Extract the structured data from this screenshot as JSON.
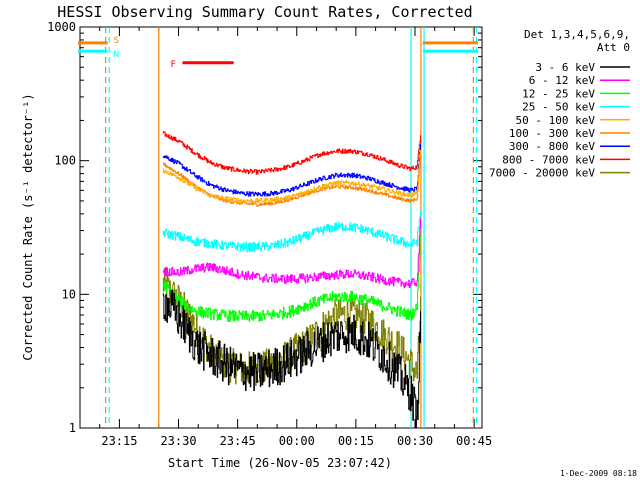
{
  "chart_data": {
    "type": "line",
    "title": "HESSI Observing Summary Count Rates, Corrected",
    "xlabel": "Start Time (26-Nov-05 23:07:42)",
    "ylabel": "Corrected Count Rate (s⁻¹ detector⁻¹)",
    "y_scale": "log",
    "ylim": [
      1,
      1000
    ],
    "xlim_minutes": [
      -55,
      47
    ],
    "x_ticks": [
      {
        "label": "23:15",
        "minute": -45
      },
      {
        "label": "23:30",
        "minute": -30
      },
      {
        "label": "23:45",
        "minute": -15
      },
      {
        "label": "00:00",
        "minute": 0
      },
      {
        "label": "00:15",
        "minute": 15
      },
      {
        "label": "00:30",
        "minute": 30
      },
      {
        "label": "00:45",
        "minute": 45
      }
    ],
    "y_ticks": [
      {
        "label": "1",
        "value": 1
      },
      {
        "label": "10",
        "value": 10
      },
      {
        "label": "100",
        "value": 100
      },
      {
        "label": "1000",
        "value": 1000
      }
    ],
    "legend": {
      "header_line1": "Det 1,3,4,5,6,9,",
      "header_line2": "Att 0",
      "placement": "right"
    },
    "series": [
      {
        "name": "3 - 6 keV",
        "color": "#000000",
        "noise": 0.35,
        "points": [
          [
            -34,
            9
          ],
          [
            -32,
            8
          ],
          [
            -29,
            6
          ],
          [
            -25,
            4
          ],
          [
            -20,
            3.2
          ],
          [
            -15,
            2.7
          ],
          [
            -10,
            2.6
          ],
          [
            -5,
            2.9
          ],
          [
            0,
            3.4
          ],
          [
            5,
            4.2
          ],
          [
            10,
            5
          ],
          [
            14,
            5.2
          ],
          [
            18,
            4.5
          ],
          [
            22,
            3.5
          ],
          [
            26,
            2.5
          ],
          [
            29,
            1.8
          ],
          [
            30.5,
            1.2
          ],
          [
            31.5,
            8
          ]
        ]
      },
      {
        "name": "6 - 12 keV",
        "color": "#ff00ff",
        "noise": 0.08,
        "points": [
          [
            -34,
            15
          ],
          [
            -30,
            14.5
          ],
          [
            -26,
            15.5
          ],
          [
            -22,
            16
          ],
          [
            -18,
            15
          ],
          [
            -14,
            14
          ],
          [
            -8,
            13.2
          ],
          [
            -2,
            13
          ],
          [
            2,
            13.2
          ],
          [
            6,
            13.6
          ],
          [
            10,
            14
          ],
          [
            14,
            14.2
          ],
          [
            18,
            13.6
          ],
          [
            22,
            12.8
          ],
          [
            26,
            12.2
          ],
          [
            29,
            12
          ],
          [
            30.5,
            12.5
          ],
          [
            31.5,
            40
          ]
        ]
      },
      {
        "name": "12 - 25 keV",
        "color": "#00ff00",
        "noise": 0.1,
        "points": [
          [
            -34,
            12
          ],
          [
            -30,
            9
          ],
          [
            -26,
            7.5
          ],
          [
            -20,
            7
          ],
          [
            -14,
            6.8
          ],
          [
            -8,
            6.9
          ],
          [
            -2,
            7.4
          ],
          [
            2,
            8.2
          ],
          [
            6,
            9
          ],
          [
            10,
            9.6
          ],
          [
            14,
            9.6
          ],
          [
            18,
            9
          ],
          [
            22,
            8.2
          ],
          [
            26,
            7.4
          ],
          [
            29,
            7
          ],
          [
            30.5,
            8
          ],
          [
            31.5,
            35
          ]
        ]
      },
      {
        "name": "25 - 50 keV",
        "color": "#00ffff",
        "noise": 0.08,
        "points": [
          [
            -34,
            29
          ],
          [
            -30,
            27
          ],
          [
            -26,
            25
          ],
          [
            -22,
            24
          ],
          [
            -18,
            23
          ],
          [
            -12,
            22.5
          ],
          [
            -6,
            23
          ],
          [
            -2,
            24.5
          ],
          [
            2,
            27
          ],
          [
            6,
            30
          ],
          [
            10,
            32
          ],
          [
            14,
            32
          ],
          [
            18,
            30
          ],
          [
            22,
            27.5
          ],
          [
            26,
            25
          ],
          [
            29,
            23.5
          ],
          [
            30.5,
            25
          ],
          [
            31.5,
            45
          ]
        ]
      },
      {
        "name": "50 - 100 keV",
        "color": "#ffb000",
        "noise": 0.04,
        "points": [
          [
            -34,
            85
          ],
          [
            -30,
            75
          ],
          [
            -26,
            63
          ],
          [
            -22,
            55
          ],
          [
            -18,
            52
          ],
          [
            -14,
            50
          ],
          [
            -10,
            50
          ],
          [
            -6,
            51
          ],
          [
            -2,
            53
          ],
          [
            2,
            58
          ],
          [
            6,
            64
          ],
          [
            10,
            68
          ],
          [
            14,
            68
          ],
          [
            18,
            65
          ],
          [
            22,
            61
          ],
          [
            26,
            57
          ],
          [
            29,
            55
          ],
          [
            30.5,
            58
          ],
          [
            31.5,
            130
          ]
        ]
      },
      {
        "name": "100 - 300 keV",
        "color": "#ff8000",
        "noise": 0.03,
        "points": [
          [
            -34,
            95
          ],
          [
            -30,
            80
          ],
          [
            -26,
            65
          ],
          [
            -22,
            55
          ],
          [
            -18,
            50
          ],
          [
            -14,
            48
          ],
          [
            -10,
            47
          ],
          [
            -6,
            48
          ],
          [
            -2,
            51
          ],
          [
            2,
            56
          ],
          [
            6,
            61
          ],
          [
            10,
            64
          ],
          [
            14,
            63
          ],
          [
            18,
            60
          ],
          [
            22,
            56
          ],
          [
            26,
            52
          ],
          [
            29,
            50
          ],
          [
            30.5,
            52
          ],
          [
            31.5,
            120
          ]
        ]
      },
      {
        "name": "300 - 800 keV",
        "color": "#0000ff",
        "noise": 0.04,
        "points": [
          [
            -34,
            110
          ],
          [
            -30,
            95
          ],
          [
            -26,
            78
          ],
          [
            -22,
            66
          ],
          [
            -18,
            60
          ],
          [
            -14,
            57
          ],
          [
            -10,
            56
          ],
          [
            -6,
            57
          ],
          [
            -2,
            60
          ],
          [
            2,
            66
          ],
          [
            6,
            73
          ],
          [
            10,
            78
          ],
          [
            14,
            78
          ],
          [
            18,
            74
          ],
          [
            22,
            68
          ],
          [
            26,
            63
          ],
          [
            29,
            60
          ],
          [
            30.5,
            62
          ],
          [
            31.5,
            140
          ]
        ]
      },
      {
        "name": "800 - 7000 keV",
        "color": "#ff0000",
        "noise": 0.04,
        "points": [
          [
            -34,
            160
          ],
          [
            -30,
            140
          ],
          [
            -26,
            115
          ],
          [
            -22,
            97
          ],
          [
            -18,
            88
          ],
          [
            -14,
            84
          ],
          [
            -10,
            82
          ],
          [
            -6,
            85
          ],
          [
            -2,
            90
          ],
          [
            2,
            100
          ],
          [
            6,
            112
          ],
          [
            10,
            118
          ],
          [
            14,
            118
          ],
          [
            18,
            112
          ],
          [
            22,
            102
          ],
          [
            26,
            92
          ],
          [
            29,
            87
          ],
          [
            30.5,
            90
          ],
          [
            31.5,
            170
          ]
        ]
      },
      {
        "name": "7000 - 20000 keV",
        "color": "#808000",
        "noise": 0.3,
        "points": [
          [
            -34,
            12
          ],
          [
            -30,
            9
          ],
          [
            -26,
            6
          ],
          [
            -22,
            3.8
          ],
          [
            -18,
            3
          ],
          [
            -14,
            2.8
          ],
          [
            -10,
            2.8
          ],
          [
            -6,
            3
          ],
          [
            -2,
            3.5
          ],
          [
            2,
            4.2
          ],
          [
            6,
            5.5
          ],
          [
            10,
            7
          ],
          [
            14,
            7.2
          ],
          [
            18,
            6.5
          ],
          [
            22,
            5
          ],
          [
            26,
            4
          ],
          [
            29,
            3
          ],
          [
            30.5,
            2.5
          ],
          [
            31.5,
            9
          ]
        ]
      }
    ],
    "flags": [
      {
        "letter": "S",
        "color": "#ff8000",
        "y_value": 760,
        "spans_minutes": [
          [
            -56,
            -48
          ],
          [
            32,
            46
          ]
        ]
      },
      {
        "letter": "N",
        "color": "#00ffff",
        "y_value": 660,
        "spans_minutes": [
          [
            -56,
            -48
          ],
          [
            32,
            46
          ]
        ]
      },
      {
        "letter": "F",
        "color": "#ff0000",
        "y_value": 540,
        "spans_minutes": [
          [
            -29,
            -16
          ]
        ]
      }
    ],
    "vertical_lines": [
      {
        "minute": -48.5,
        "color": "#ff8000",
        "dash": true
      },
      {
        "minute": -47.6,
        "color": "#00ffff",
        "dash": true
      },
      {
        "minute": -35.0,
        "color": "#ff8000",
        "dash": false
      },
      {
        "minute": 29.0,
        "color": "#00ffff",
        "dash": false
      },
      {
        "minute": 31.5,
        "color": "#ff8000",
        "dash": false
      },
      {
        "minute": 32.3,
        "color": "#00ffff",
        "dash": false
      },
      {
        "minute": 44.8,
        "color": "#ff8000",
        "dash": true
      },
      {
        "minute": 45.6,
        "color": "#00ffff",
        "dash": true
      }
    ],
    "footer": "1-Dec-2009 08:18"
  }
}
